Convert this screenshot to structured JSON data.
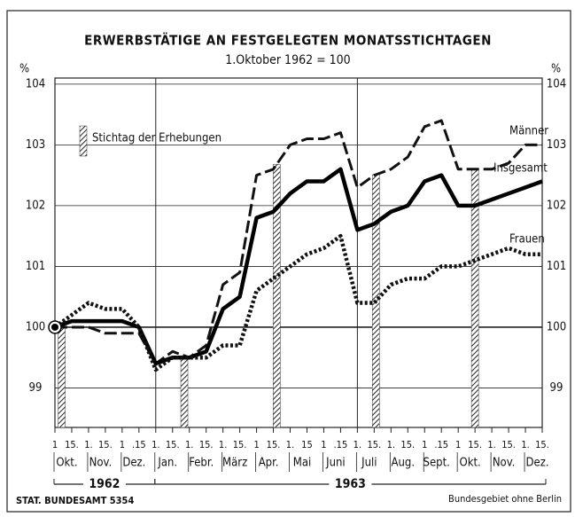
{
  "chart_data": {
    "type": "line",
    "title": "ERWERBSTÄTIGE AN FESTGELEGTEN MONATSSTICHTAGEN",
    "subtitle": "1.Oktober 1962 = 100",
    "y_unit_left": "%",
    "y_unit_right": "%",
    "categories": [
      "1",
      "15.",
      "1.",
      "15.",
      "1",
      ".15",
      "1.",
      "15.",
      "1.",
      "15.",
      "1.",
      "15.",
      "1",
      "15.",
      "1.",
      "15",
      "1",
      ".15",
      "1.",
      "15.",
      "1.",
      "15.",
      "1",
      ".15",
      "1",
      "15.",
      "1.",
      "15.",
      "1.",
      "15."
    ],
    "month_labels": [
      "Okt.",
      "Nov.",
      "Dez.",
      "Jan.",
      "Febr.",
      "März",
      "Apr.",
      "Mai",
      "Juni",
      "Juli",
      "Aug.",
      "Sept.",
      "Okt.",
      "Nov.",
      "Dez."
    ],
    "year_labels": [
      "1962",
      "1963"
    ],
    "series": [
      {
        "name": "Männer",
        "color": "#111",
        "style": "dashed",
        "values": [
          100.0,
          100.0,
          100.0,
          99.9,
          99.9,
          99.9,
          99.4,
          99.6,
          99.5,
          99.7,
          100.7,
          100.9,
          102.5,
          102.6,
          103.0,
          103.1,
          103.1,
          103.2,
          102.3,
          102.5,
          102.6,
          102.8,
          103.3,
          103.4,
          102.6,
          102.6,
          102.6,
          102.7,
          103.0,
          103.0
        ]
      },
      {
        "name": "Insgesamt",
        "color": "#000",
        "style": "solid",
        "values": [
          100.0,
          100.1,
          100.1,
          100.1,
          100.1,
          100.0,
          99.4,
          99.5,
          99.5,
          99.6,
          100.3,
          100.5,
          101.8,
          101.9,
          102.2,
          102.4,
          102.4,
          102.6,
          101.6,
          101.7,
          101.9,
          102.0,
          102.4,
          102.5,
          102.0,
          102.0,
          102.1,
          102.2,
          102.3,
          102.4
        ]
      },
      {
        "name": "Frauen",
        "color": "#111",
        "style": "dotted",
        "values": [
          100.0,
          100.2,
          100.4,
          100.3,
          100.3,
          100.0,
          99.3,
          99.5,
          99.5,
          99.5,
          99.7,
          99.7,
          100.6,
          100.8,
          101.0,
          101.2,
          101.3,
          101.5,
          100.4,
          100.4,
          100.7,
          100.8,
          100.8,
          101.0,
          101.0,
          101.1,
          101.2,
          101.3,
          101.2,
          101.2
        ]
      }
    ],
    "legend_label": "Stichtag der Erhebungen",
    "stichtage": [
      0.4,
      7.7,
      13.2,
      19.1,
      25.0
    ],
    "ylim": [
      98.35,
      104.1
    ],
    "yticks": [
      99,
      100,
      101,
      102,
      103,
      104
    ],
    "grid": true,
    "footer_left": "STAT. BUNDESAMT 5354",
    "footer_right": "Bundesgebiet ohne Berlin"
  }
}
